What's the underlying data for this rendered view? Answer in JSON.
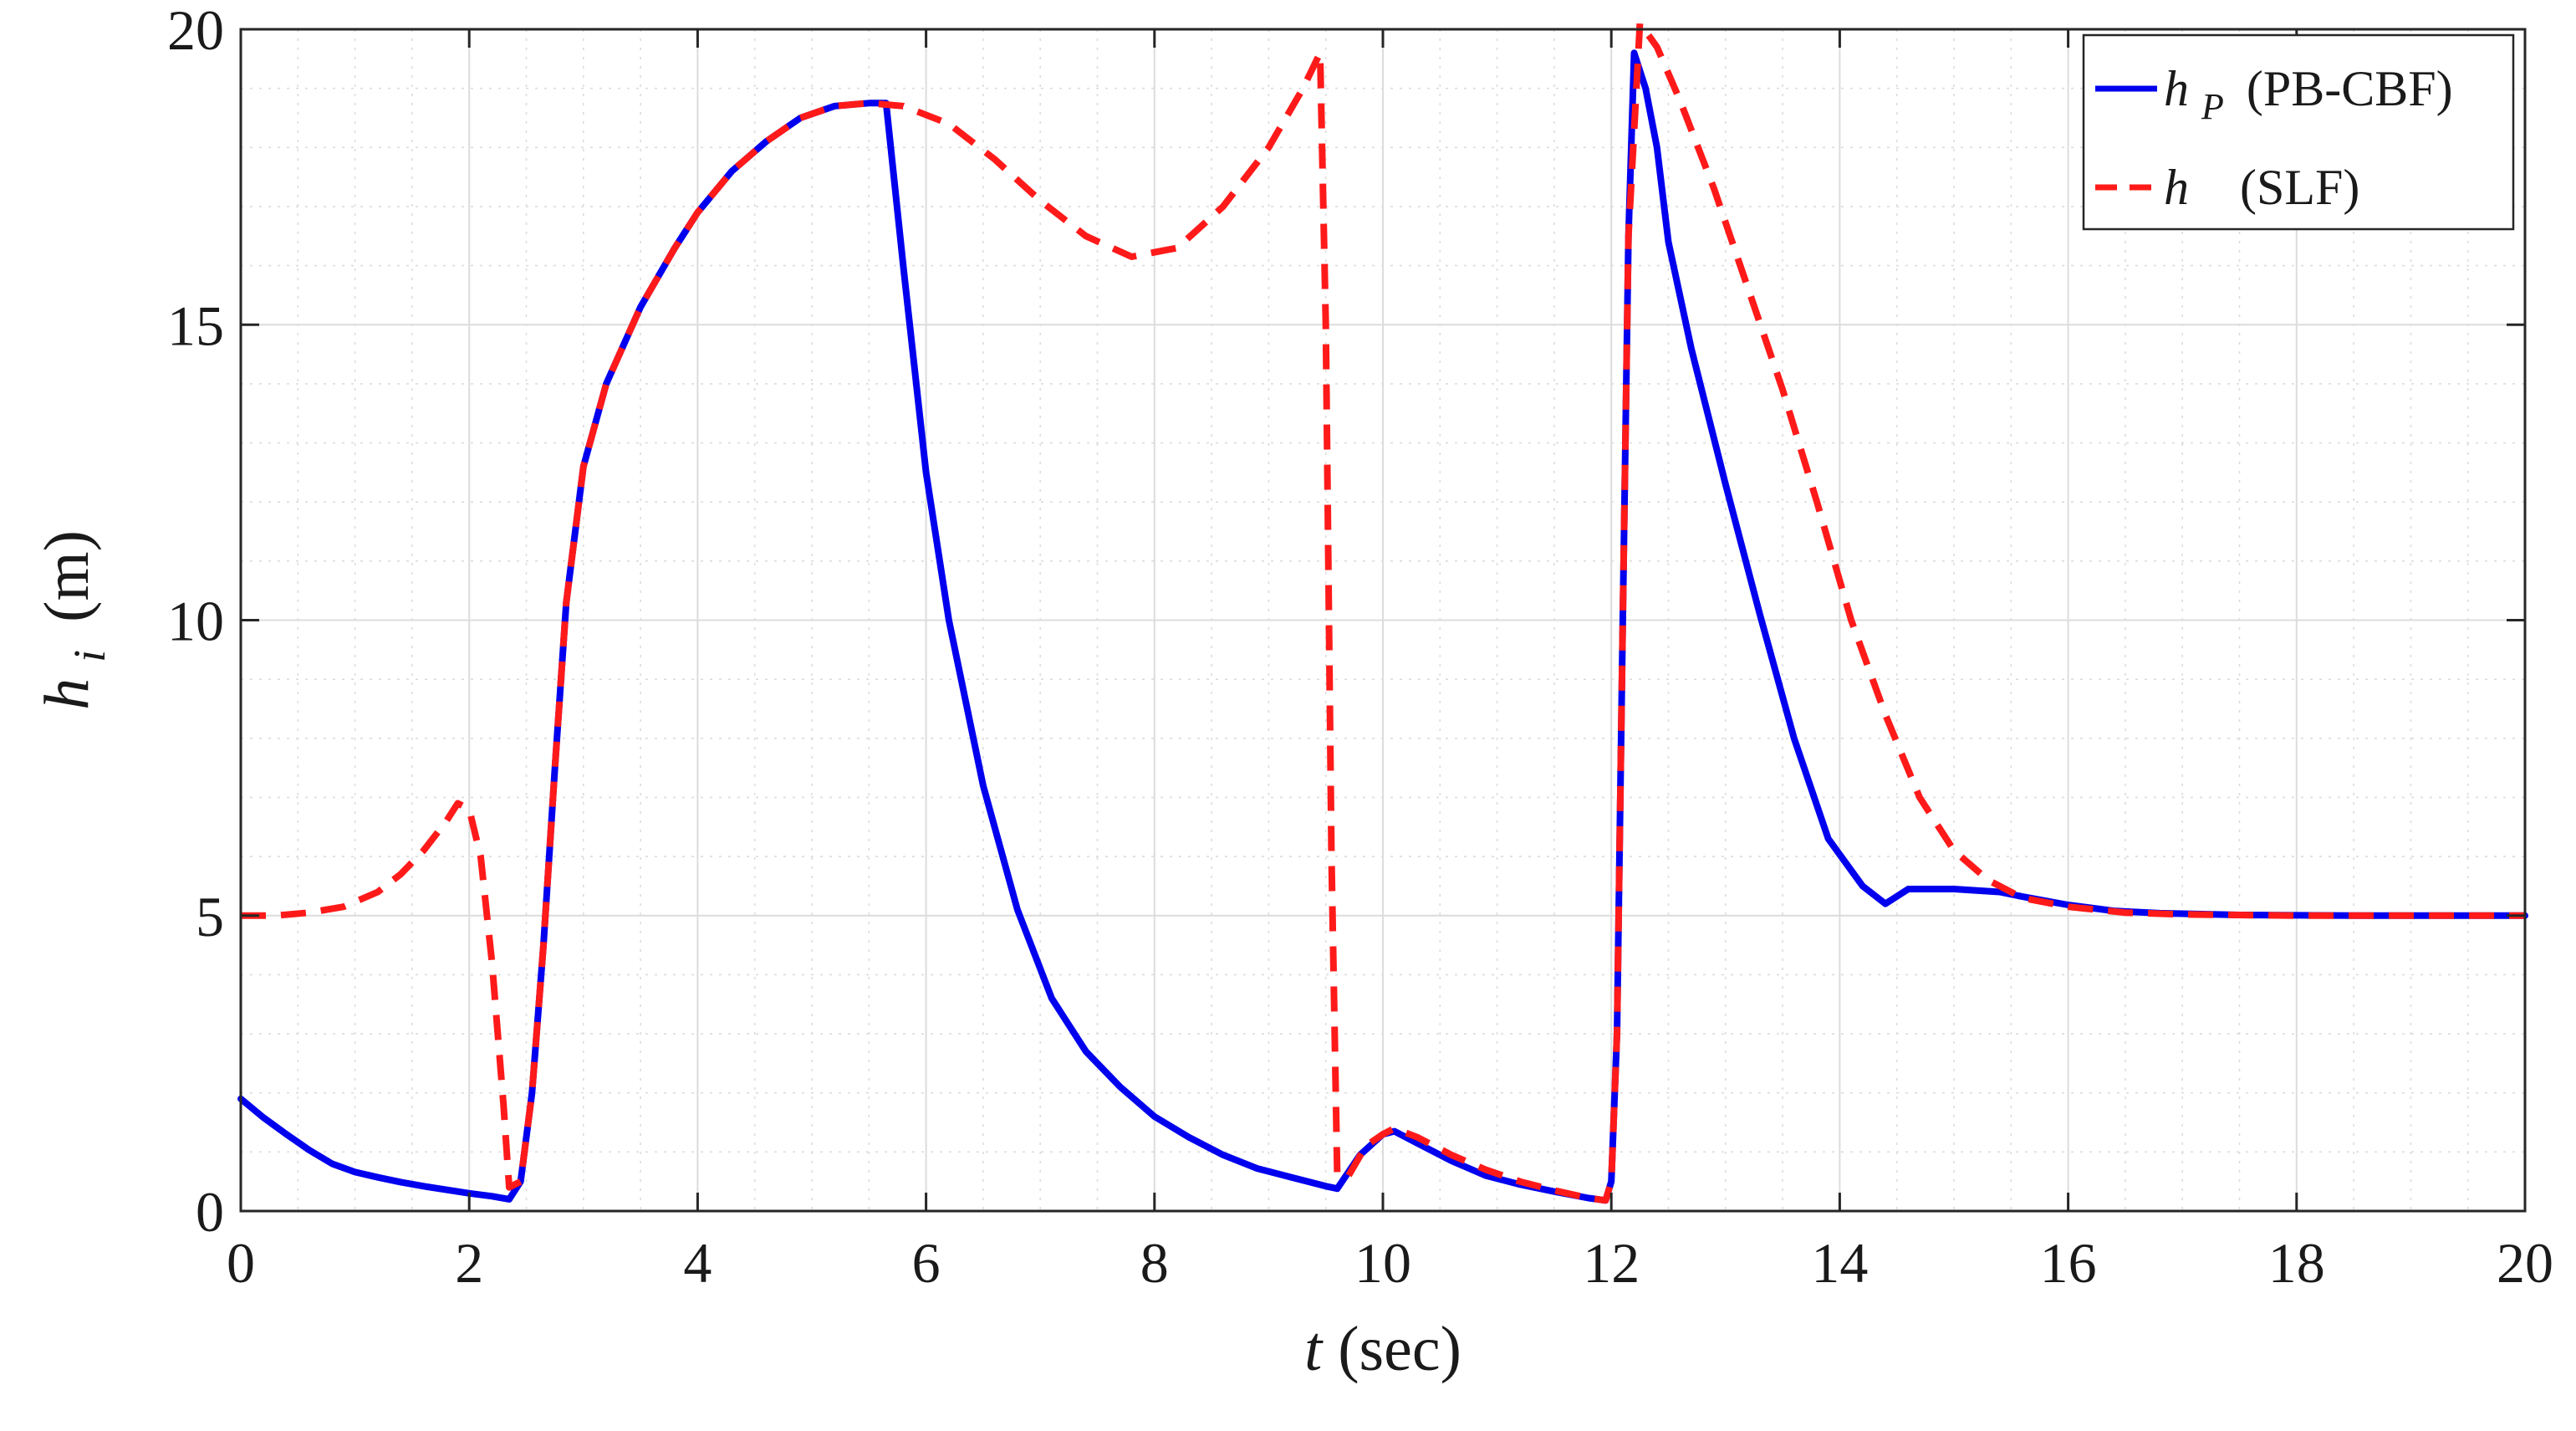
{
  "chart_data": {
    "type": "line",
    "xlabel_var": "t",
    "xlabel_unit": "(sec)",
    "ylabel_var": "h",
    "ylabel_sub": "i",
    "ylabel_unit": "(m)",
    "xlim": [
      0,
      20
    ],
    "ylim": [
      0,
      20
    ],
    "x_ticks": [
      "0",
      "2",
      "4",
      "6",
      "8",
      "10",
      "12",
      "14",
      "16",
      "18",
      "20"
    ],
    "y_ticks": [
      "0",
      "5",
      "10",
      "15",
      "20"
    ],
    "grid": true,
    "minor_grid": true,
    "legend_position": "top-right",
    "series": [
      {
        "name": "h_P (PB-CBF)",
        "legend_var": "h",
        "legend_sub": "P",
        "legend_text": "(PB-CBF)",
        "color": "#0000ee",
        "style": "solid",
        "points": [
          [
            0,
            1.9
          ],
          [
            0.2,
            1.58
          ],
          [
            0.4,
            1.3
          ],
          [
            0.6,
            1.03
          ],
          [
            0.8,
            0.8
          ],
          [
            1.0,
            0.66
          ],
          [
            1.2,
            0.57
          ],
          [
            1.4,
            0.49
          ],
          [
            1.6,
            0.42
          ],
          [
            1.8,
            0.36
          ],
          [
            2.0,
            0.3
          ],
          [
            2.2,
            0.25
          ],
          [
            2.35,
            0.2
          ],
          [
            2.45,
            0.5
          ],
          [
            2.55,
            2.0
          ],
          [
            2.65,
            4.5
          ],
          [
            2.75,
            7.5
          ],
          [
            2.85,
            10.3
          ],
          [
            3.0,
            12.6
          ],
          [
            3.2,
            14.0
          ],
          [
            3.5,
            15.3
          ],
          [
            3.8,
            16.3
          ],
          [
            4.0,
            16.9
          ],
          [
            4.3,
            17.6
          ],
          [
            4.6,
            18.1
          ],
          [
            4.9,
            18.5
          ],
          [
            5.2,
            18.7
          ],
          [
            5.5,
            18.75
          ],
          [
            5.65,
            18.75
          ],
          [
            5.8,
            16.0
          ],
          [
            6.0,
            12.5
          ],
          [
            6.2,
            10.0
          ],
          [
            6.5,
            7.2
          ],
          [
            6.8,
            5.1
          ],
          [
            7.1,
            3.6
          ],
          [
            7.4,
            2.7
          ],
          [
            7.7,
            2.1
          ],
          [
            8.0,
            1.6
          ],
          [
            8.3,
            1.25
          ],
          [
            8.6,
            0.95
          ],
          [
            8.9,
            0.72
          ],
          [
            9.2,
            0.57
          ],
          [
            9.5,
            0.42
          ],
          [
            9.6,
            0.38
          ],
          [
            9.8,
            0.95
          ],
          [
            10.0,
            1.3
          ],
          [
            10.1,
            1.35
          ],
          [
            10.3,
            1.15
          ],
          [
            10.6,
            0.85
          ],
          [
            10.9,
            0.6
          ],
          [
            11.2,
            0.45
          ],
          [
            11.5,
            0.33
          ],
          [
            11.8,
            0.22
          ],
          [
            11.95,
            0.18
          ],
          [
            12.0,
            0.5
          ],
          [
            12.05,
            3.0
          ],
          [
            12.1,
            10.0
          ],
          [
            12.15,
            16.5
          ],
          [
            12.2,
            19.6
          ],
          [
            12.3,
            19.0
          ],
          [
            12.4,
            18.0
          ],
          [
            12.5,
            16.4
          ],
          [
            12.7,
            14.6
          ],
          [
            13.0,
            12.3
          ],
          [
            13.3,
            10.1
          ],
          [
            13.6,
            8.0
          ],
          [
            13.9,
            6.3
          ],
          [
            14.2,
            5.5
          ],
          [
            14.4,
            5.2
          ],
          [
            14.6,
            5.45
          ],
          [
            15.0,
            5.45
          ],
          [
            15.4,
            5.4
          ],
          [
            15.6,
            5.32
          ],
          [
            15.8,
            5.25
          ],
          [
            16.0,
            5.18
          ],
          [
            16.4,
            5.08
          ],
          [
            16.8,
            5.04
          ],
          [
            17.5,
            5.01
          ],
          [
            18.5,
            5.0
          ],
          [
            20,
            5.0
          ]
        ]
      },
      {
        "name": "h (SLF)",
        "legend_var": "h",
        "legend_sub": "",
        "legend_text": "(SLF)",
        "color": "#ff1a1a",
        "style": "dashed",
        "points": [
          [
            0,
            5.0
          ],
          [
            0.3,
            5.0
          ],
          [
            0.6,
            5.05
          ],
          [
            0.9,
            5.15
          ],
          [
            1.2,
            5.4
          ],
          [
            1.4,
            5.7
          ],
          [
            1.6,
            6.1
          ],
          [
            1.8,
            6.6
          ],
          [
            1.9,
            6.9
          ],
          [
            2.0,
            6.8
          ],
          [
            2.1,
            6.0
          ],
          [
            2.2,
            4.2
          ],
          [
            2.3,
            1.8
          ],
          [
            2.35,
            0.4
          ],
          [
            2.45,
            0.5
          ],
          [
            2.55,
            2.0
          ],
          [
            2.65,
            4.5
          ],
          [
            2.75,
            7.5
          ],
          [
            2.85,
            10.3
          ],
          [
            3.0,
            12.6
          ],
          [
            3.2,
            14.0
          ],
          [
            3.5,
            15.3
          ],
          [
            3.8,
            16.3
          ],
          [
            4.0,
            16.9
          ],
          [
            4.3,
            17.6
          ],
          [
            4.6,
            18.1
          ],
          [
            4.9,
            18.5
          ],
          [
            5.2,
            18.7
          ],
          [
            5.5,
            18.75
          ],
          [
            5.8,
            18.7
          ],
          [
            6.2,
            18.4
          ],
          [
            6.6,
            17.8
          ],
          [
            7.0,
            17.1
          ],
          [
            7.4,
            16.5
          ],
          [
            7.8,
            16.15
          ],
          [
            8.2,
            16.3
          ],
          [
            8.6,
            17.0
          ],
          [
            9.0,
            18.0
          ],
          [
            9.3,
            19.0
          ],
          [
            9.45,
            19.6
          ],
          [
            9.5,
            15.0
          ],
          [
            9.55,
            6.0
          ],
          [
            9.6,
            0.6
          ],
          [
            9.7,
            0.6
          ],
          [
            9.85,
            1.1
          ],
          [
            10.0,
            1.3
          ],
          [
            10.1,
            1.4
          ],
          [
            10.3,
            1.25
          ],
          [
            10.6,
            0.95
          ],
          [
            10.9,
            0.7
          ],
          [
            11.2,
            0.5
          ],
          [
            11.5,
            0.35
          ],
          [
            11.8,
            0.22
          ],
          [
            11.95,
            0.18
          ],
          [
            12.0,
            0.5
          ],
          [
            12.05,
            3.0
          ],
          [
            12.1,
            10.0
          ],
          [
            12.15,
            16.5
          ],
          [
            12.25,
            20.1
          ],
          [
            12.4,
            19.7
          ],
          [
            12.6,
            18.8
          ],
          [
            12.9,
            17.3
          ],
          [
            13.2,
            15.6
          ],
          [
            13.5,
            13.9
          ],
          [
            13.8,
            12.0
          ],
          [
            14.1,
            10.0
          ],
          [
            14.4,
            8.4
          ],
          [
            14.7,
            7.0
          ],
          [
            15.0,
            6.1
          ],
          [
            15.3,
            5.6
          ],
          [
            15.6,
            5.3
          ],
          [
            16.0,
            5.15
          ],
          [
            16.5,
            5.05
          ],
          [
            17.0,
            5.02
          ],
          [
            18.0,
            5.0
          ],
          [
            20,
            5.0
          ]
        ]
      }
    ]
  }
}
